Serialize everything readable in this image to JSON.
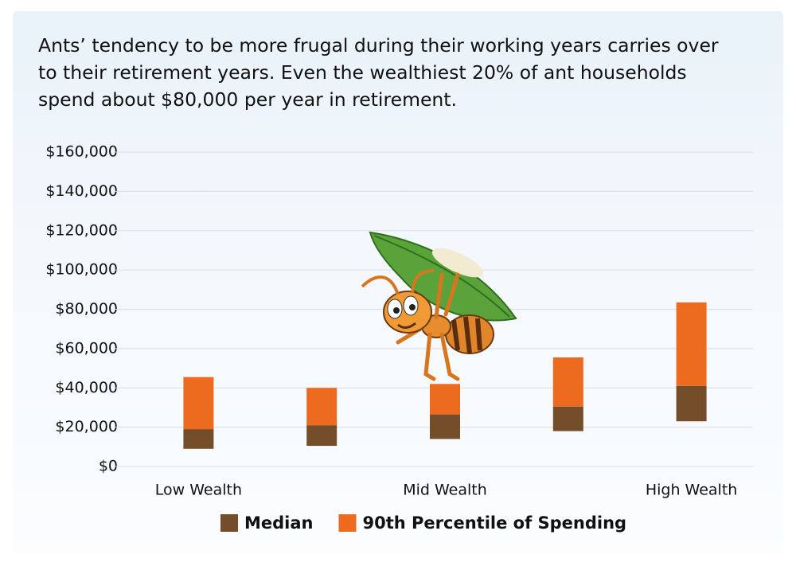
{
  "chart_data": {
    "type": "floating_bar",
    "title": "Ants’ tendency to be more frugal during their working years carries over to their retirement years. Even the wealthiest 20% of ant households spend about $80,000 per year in retirement.",
    "categories": [
      "Low Wealth",
      null,
      "Mid Wealth",
      null,
      "High Wealth"
    ],
    "series": [
      {
        "name": "Median",
        "color": "#744d2a",
        "low": [
          9000,
          10500,
          14000,
          18000,
          23000
        ],
        "values": [
          19000,
          21000,
          26500,
          30500,
          41000
        ]
      },
      {
        "name": "90th Percentile of Spending",
        "color": "#ec6b1f",
        "values": [
          45500,
          40000,
          42000,
          55500,
          83500
        ]
      }
    ],
    "ylim": [
      0,
      160000
    ],
    "yticks": [
      {
        "value": 0,
        "label": "$0"
      },
      {
        "value": 20000,
        "label": "$20,000"
      },
      {
        "value": 40000,
        "label": "$40,000"
      },
      {
        "value": 60000,
        "label": "$60,000"
      },
      {
        "value": 80000,
        "label": "$80,000"
      },
      {
        "value": 100000,
        "label": "$100,000"
      },
      {
        "value": 120000,
        "label": "$120,000"
      },
      {
        "value": 140000,
        "label": "$140,000"
      },
      {
        "value": 160000,
        "label": "$160,000"
      }
    ],
    "grid": true
  }
}
